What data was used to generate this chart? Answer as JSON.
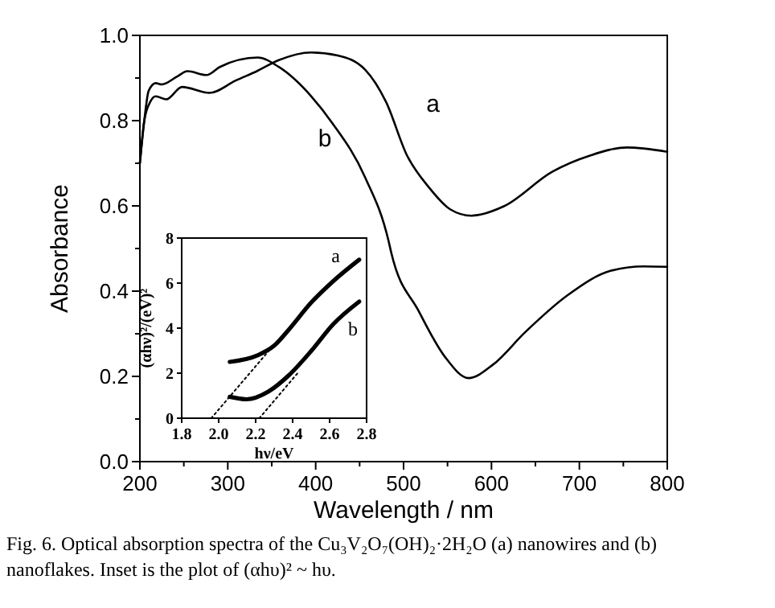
{
  "chart_data": [
    {
      "type": "line",
      "xlabel": "Wavelength / nm",
      "ylabel": "Absorbance",
      "xlim": [
        200,
        800
      ],
      "ylim": [
        0,
        1
      ],
      "xticks": [
        200,
        {
          "value": 250,
          "label": null
        },
        300,
        {
          "value": 350,
          "label": null
        },
        400,
        {
          "value": 450,
          "label": null
        },
        500,
        {
          "value": 550,
          "label": null
        },
        600,
        {
          "value": 650,
          "label": null
        },
        700,
        {
          "value": 750,
          "label": null
        },
        800
      ],
      "yticks": [
        {
          "value": 0,
          "label": "0.0"
        },
        {
          "value": 0.1,
          "label": null
        },
        0.2,
        {
          "value": 0.3,
          "label": null
        },
        0.4,
        {
          "value": 0.5,
          "label": null
        },
        0.6,
        {
          "value": 0.7,
          "label": null
        },
        0.8,
        {
          "value": 0.9,
          "label": null
        },
        {
          "value": 1,
          "label": "1.0"
        }
      ],
      "grid": false,
      "series": [
        {
          "name": "a",
          "color": "#000000",
          "x": [
            200,
            205,
            212,
            218,
            230,
            248,
            279,
            309,
            334,
            358,
            395,
            425,
            456,
            480,
            504,
            529,
            553,
            577,
            614,
            669,
            712,
            754,
            800
          ],
          "values": [
            0.7,
            0.8,
            0.845,
            0.857,
            0.85,
            0.879,
            0.865,
            0.894,
            0.917,
            0.942,
            0.96,
            0.953,
            0.92,
            0.844,
            0.718,
            0.643,
            0.592,
            0.577,
            0.599,
            0.68,
            0.718,
            0.737,
            0.727
          ]
        },
        {
          "name": "b",
          "color": "#000000",
          "x": [
            200,
            205,
            210,
            218,
            225,
            242,
            254,
            276,
            291,
            334,
            358,
            395,
            419,
            456,
            483,
            486,
            517,
            547,
            574,
            602,
            638,
            687,
            736,
            773,
            800
          ],
          "values": [
            0.7,
            0.8,
            0.87,
            0.888,
            0.885,
            0.903,
            0.916,
            0.907,
            0.926,
            0.948,
            0.926,
            0.857,
            0.794,
            0.668,
            0.517,
            0.49,
            0.354,
            0.246,
            0.196,
            0.228,
            0.303,
            0.391,
            0.448,
            0.458,
            0.457
          ]
        }
      ],
      "annotations": [
        "Fig. 6. Optical absorption spectra of the Cu₃V₂O₇(OH)₂·2H₂O (a) nanowires and (b) nanoflakes. Inset is the plot of (αhυ)² ~ hυ."
      ]
    },
    {
      "type": "line",
      "xlabel": "hν/eV",
      "ylabel": "(αhν)²/(eV)²",
      "xlim": [
        1.8,
        2.8
      ],
      "ylim": [
        0,
        8
      ],
      "xticks": [
        {
          "value": 1.8,
          "label": "1.8"
        },
        {
          "value": 2,
          "label": "2.0"
        },
        {
          "value": 2.2,
          "label": "2.2"
        },
        {
          "value": 2.4,
          "label": "2.4"
        },
        {
          "value": 2.6,
          "label": "2.6"
        },
        {
          "value": 2.8,
          "label": "2.8"
        }
      ],
      "yticks": [
        0,
        2,
        4,
        6,
        8
      ],
      "grid": false,
      "series": [
        {
          "name": "a",
          "color": "#000000",
          "x": [
            2.06,
            2.21,
            2.3,
            2.38,
            2.5,
            2.62,
            2.76
          ],
          "values": [
            2.5,
            2.79,
            3.22,
            3.94,
            5.13,
            6.09,
            7.04
          ]
        },
        {
          "name": "b",
          "color": "#000000",
          "x": [
            2.06,
            2.15,
            2.27,
            2.38,
            2.5,
            2.62,
            2.76
          ],
          "values": [
            0.95,
            0.84,
            1.19,
            1.91,
            2.98,
            4.18,
            5.18
          ]
        },
        {
          "type": "line",
          "line_style": "dotted",
          "color": "#000000",
          "x": [
            1.96,
            2.27
          ],
          "values": [
            0,
            2.98
          ]
        },
        {
          "type": "line",
          "line_style": "dotted",
          "color": "#000000",
          "x": [
            2.22,
            2.43
          ],
          "values": [
            0,
            2.03
          ]
        }
      ]
    }
  ]
}
